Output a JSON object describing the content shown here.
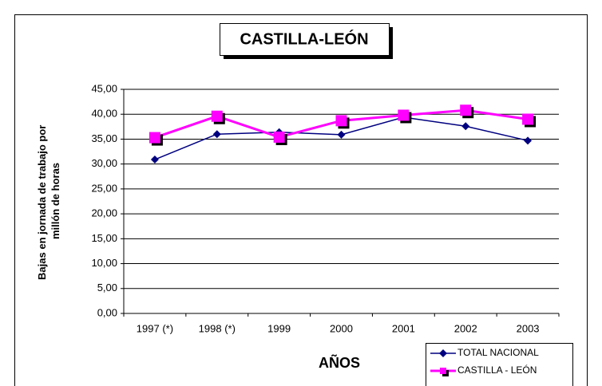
{
  "chart_data": {
    "type": "line",
    "title": "CASTILLA-LEÓN",
    "ylabel": [
      "Bajas en jornada de trabajo por",
      "millón de horas"
    ],
    "xlabel": "AÑOS",
    "categories": [
      "1997 (*)",
      "1998 (*)",
      "1999",
      "2000",
      "2001",
      "2002",
      "2003"
    ],
    "series": [
      {
        "name": "TOTAL NACIONAL",
        "color": "#000080",
        "marker": "diamond",
        "values": [
          30.9,
          36.0,
          36.4,
          35.9,
          39.4,
          37.6,
          34.7
        ]
      },
      {
        "name": "CASTILLA - LEÓN",
        "color": "#ff00ff",
        "marker": "square",
        "values": [
          35.3,
          39.6,
          35.4,
          38.7,
          39.8,
          40.8,
          39.0
        ]
      }
    ],
    "ylim": [
      0,
      45
    ],
    "yticks": [
      {
        "value": 0,
        "label": "0,00"
      },
      {
        "value": 5,
        "label": "5,00"
      },
      {
        "value": 10,
        "label": "10,00"
      },
      {
        "value": 15,
        "label": "15,00"
      },
      {
        "value": 20,
        "label": "20,00"
      },
      {
        "value": 25,
        "label": "25,00"
      },
      {
        "value": 30,
        "label": "30,00"
      },
      {
        "value": 35,
        "label": "35,00"
      },
      {
        "value": 40,
        "label": "40,00"
      },
      {
        "value": 45,
        "label": "45,00"
      }
    ],
    "grid": true,
    "legend": "bottom-right"
  }
}
